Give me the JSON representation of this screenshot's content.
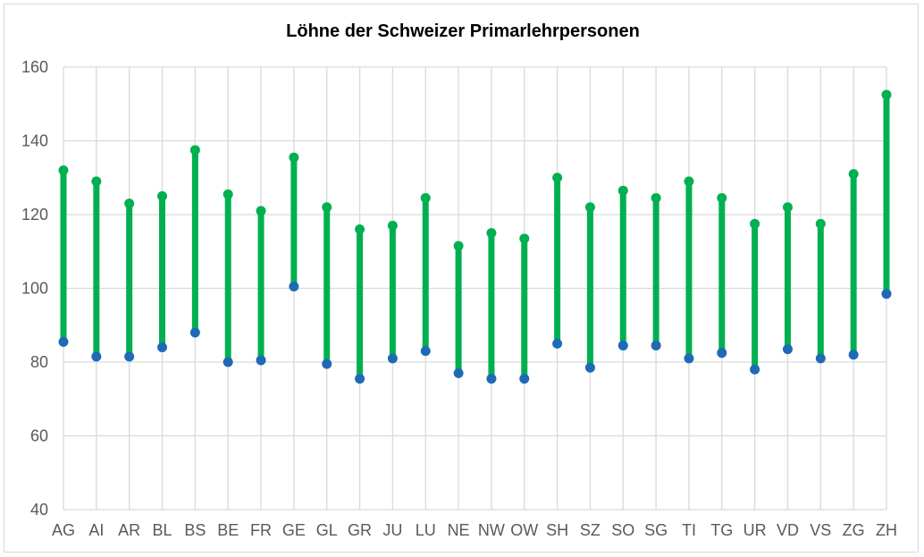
{
  "chart_data": {
    "type": "range-dot",
    "title": "Löhne der Schweizer Primarlehrpersonen",
    "xlabel": "",
    "ylabel": "",
    "ylim": [
      40,
      160
    ],
    "yticks": [
      40,
      60,
      80,
      100,
      120,
      140,
      160
    ],
    "grid": true,
    "categories": [
      "AG",
      "AI",
      "AR",
      "BL",
      "BS",
      "BE",
      "FR",
      "GE",
      "GL",
      "GR",
      "JU",
      "LU",
      "NE",
      "NW",
      "OW",
      "SH",
      "SZ",
      "SO",
      "SG",
      "TI",
      "TG",
      "UR",
      "VD",
      "VS",
      "ZG",
      "ZH"
    ],
    "series": [
      {
        "values": [
          85.5,
          81.5,
          81.5,
          84.0,
          88.0,
          80.0,
          80.5,
          100.5,
          79.5,
          75.5,
          81.0,
          83.0,
          77.0,
          75.5,
          75.5,
          85.0,
          78.5,
          84.5,
          84.5,
          81.0,
          82.5,
          78.0,
          83.5,
          81.0,
          82.0,
          98.5
        ]
      },
      {
        "values": [
          132.0,
          129.0,
          123.0,
          125.0,
          137.5,
          125.5,
          121.0,
          135.5,
          122.0,
          116.0,
          117.0,
          124.5,
          111.5,
          115.0,
          113.5,
          130.0,
          122.0,
          126.5,
          124.5,
          129.0,
          124.5,
          117.5,
          122.0,
          117.5,
          131.0,
          152.5
        ]
      }
    ],
    "colors": {
      "range": "#00b050",
      "low_dot": "#1f6ab5",
      "high_dot": "#00b050",
      "grid": "#d9d9d9",
      "text": "#595959"
    }
  }
}
